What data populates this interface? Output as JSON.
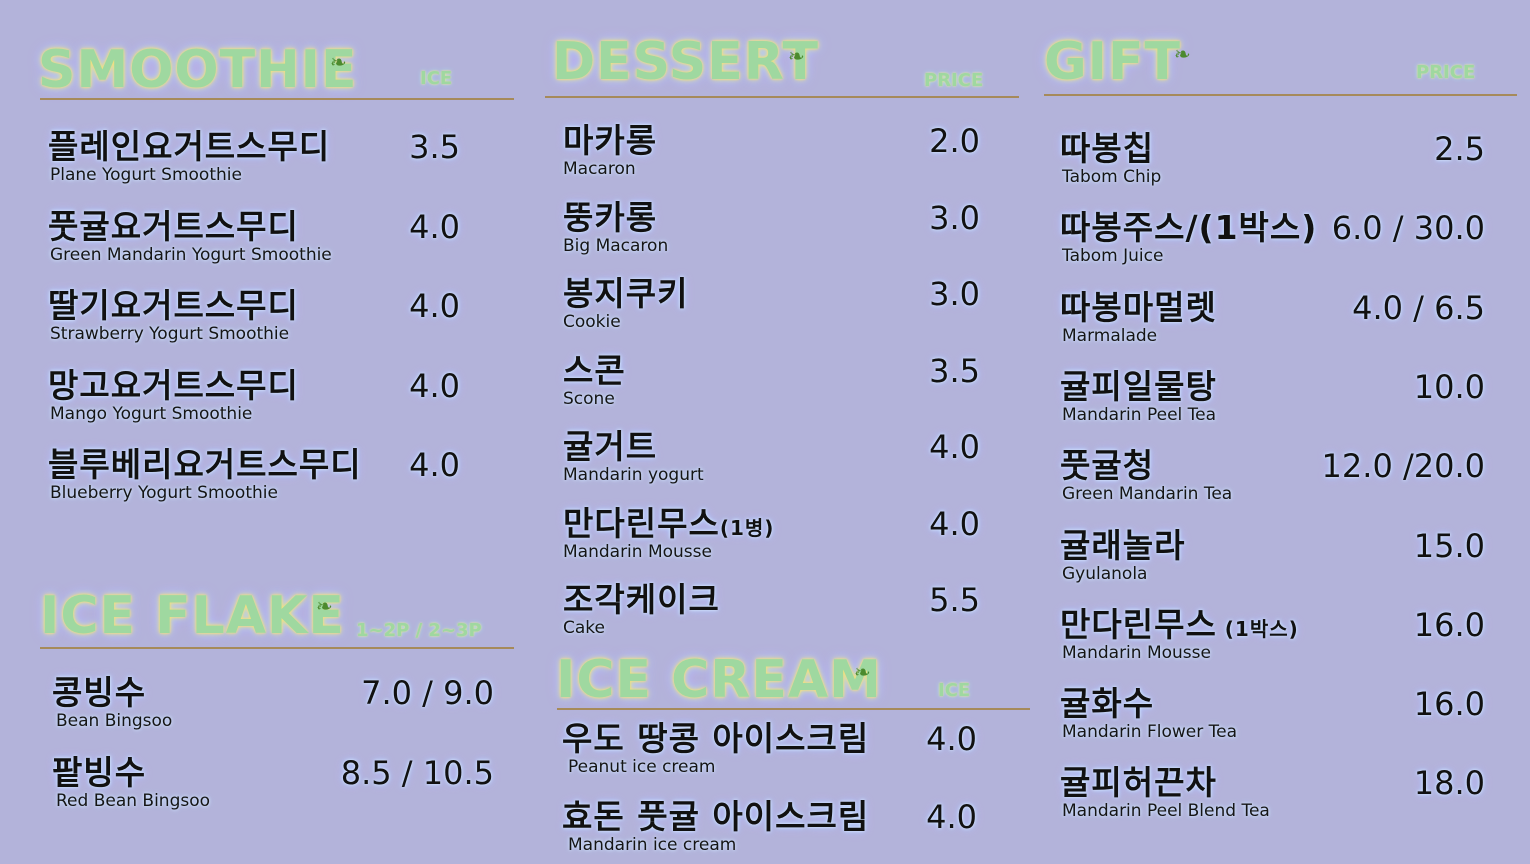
{
  "smoothie": {
    "title": "SMOOTHIE",
    "col": "ICE",
    "items": [
      {
        "ko": "플레인요거트스무디",
        "en": "Plane Yogurt Smoothie",
        "price": "3.5"
      },
      {
        "ko": "풋귤요거트스무디",
        "en": "Green Mandarin Yogurt Smoothie",
        "price": "4.0"
      },
      {
        "ko": "딸기요거트스무디",
        "en": "Strawberry Yogurt Smoothie",
        "price": "4.0"
      },
      {
        "ko": "망고요거트스무디",
        "en": "Mango Yogurt Smoothie",
        "price": "4.0"
      },
      {
        "ko": "블루베리요거트스무디",
        "en": "Blueberry Yogurt Smoothie",
        "price": "4.0"
      }
    ]
  },
  "ice_flake": {
    "title": "ICE FLAKE",
    "col": "1~2P / 2~3P",
    "items": [
      {
        "ko": "콩빙수",
        "en": "Bean Bingsoo",
        "price": "7.0 / 9.0"
      },
      {
        "ko": "팥빙수",
        "en": "Red Bean Bingsoo",
        "price": "8.5 / 10.5"
      }
    ]
  },
  "dessert": {
    "title": "DESSERT",
    "col": "PRICE",
    "items": [
      {
        "ko": "마카롱",
        "en": "Macaron",
        "price": "2.0"
      },
      {
        "ko": "뚱카롱",
        "en": "Big Macaron",
        "price": "3.0"
      },
      {
        "ko": "봉지쿠키",
        "en": "Cookie",
        "price": "3.0"
      },
      {
        "ko": "스콘",
        "en": "Scone",
        "price": "3.5"
      },
      {
        "ko": "귤거트",
        "en": "Mandarin yogurt",
        "price": "4.0"
      },
      {
        "ko": "만다린무스",
        "ko_small": "(1병)",
        "en": "Mandarin Mousse",
        "price": "4.0"
      },
      {
        "ko": "조각케이크",
        "en": "Cake",
        "price": "5.5"
      }
    ]
  },
  "ice_cream": {
    "title": "ICE CREAM",
    "col": "ICE",
    "items": [
      {
        "ko": "우도 땅콩 아이스크림",
        "en": "Peanut ice cream",
        "price": "4.0"
      },
      {
        "ko": "효돈 풋귤 아이스크림",
        "en": "Mandarin ice cream",
        "price": "4.0"
      }
    ]
  },
  "gift": {
    "title": "GIFT",
    "col": "PRICE",
    "items": [
      {
        "ko": "따봉칩",
        "en": "Tabom Chip",
        "price": "2.5"
      },
      {
        "ko": "따봉주스/(1박스)",
        "en": "Tabom Juice",
        "price": "6.0 / 30.0"
      },
      {
        "ko": "따봉마멀렛",
        "en": "Marmalade",
        "price": "4.0 / 6.5"
      },
      {
        "ko": "귤피일물탕",
        "en": "Mandarin Peel Tea",
        "price": "10.0"
      },
      {
        "ko": "풋귤청",
        "en": "Green Mandarin Tea",
        "price": "12.0 /20.0"
      },
      {
        "ko": "귤래놀라",
        "en": "Gyulanola",
        "price": "15.0"
      },
      {
        "ko": "만다린무스",
        "ko_small": " (1박스)",
        "en": "Mandarin Mousse",
        "price": "16.0"
      },
      {
        "ko": "귤화수",
        "en": "Mandarin Flower Tea",
        "price": "16.0"
      },
      {
        "ko": "귤피허끈차",
        "en": "Mandarin Peel Blend Tea",
        "price": "18.0"
      }
    ]
  },
  "colors": {
    "background": "#b3b3da",
    "rule": "#a68a5a",
    "title": "#9fd8a0"
  },
  "icons": {
    "leaf": "leaf-icon"
  }
}
